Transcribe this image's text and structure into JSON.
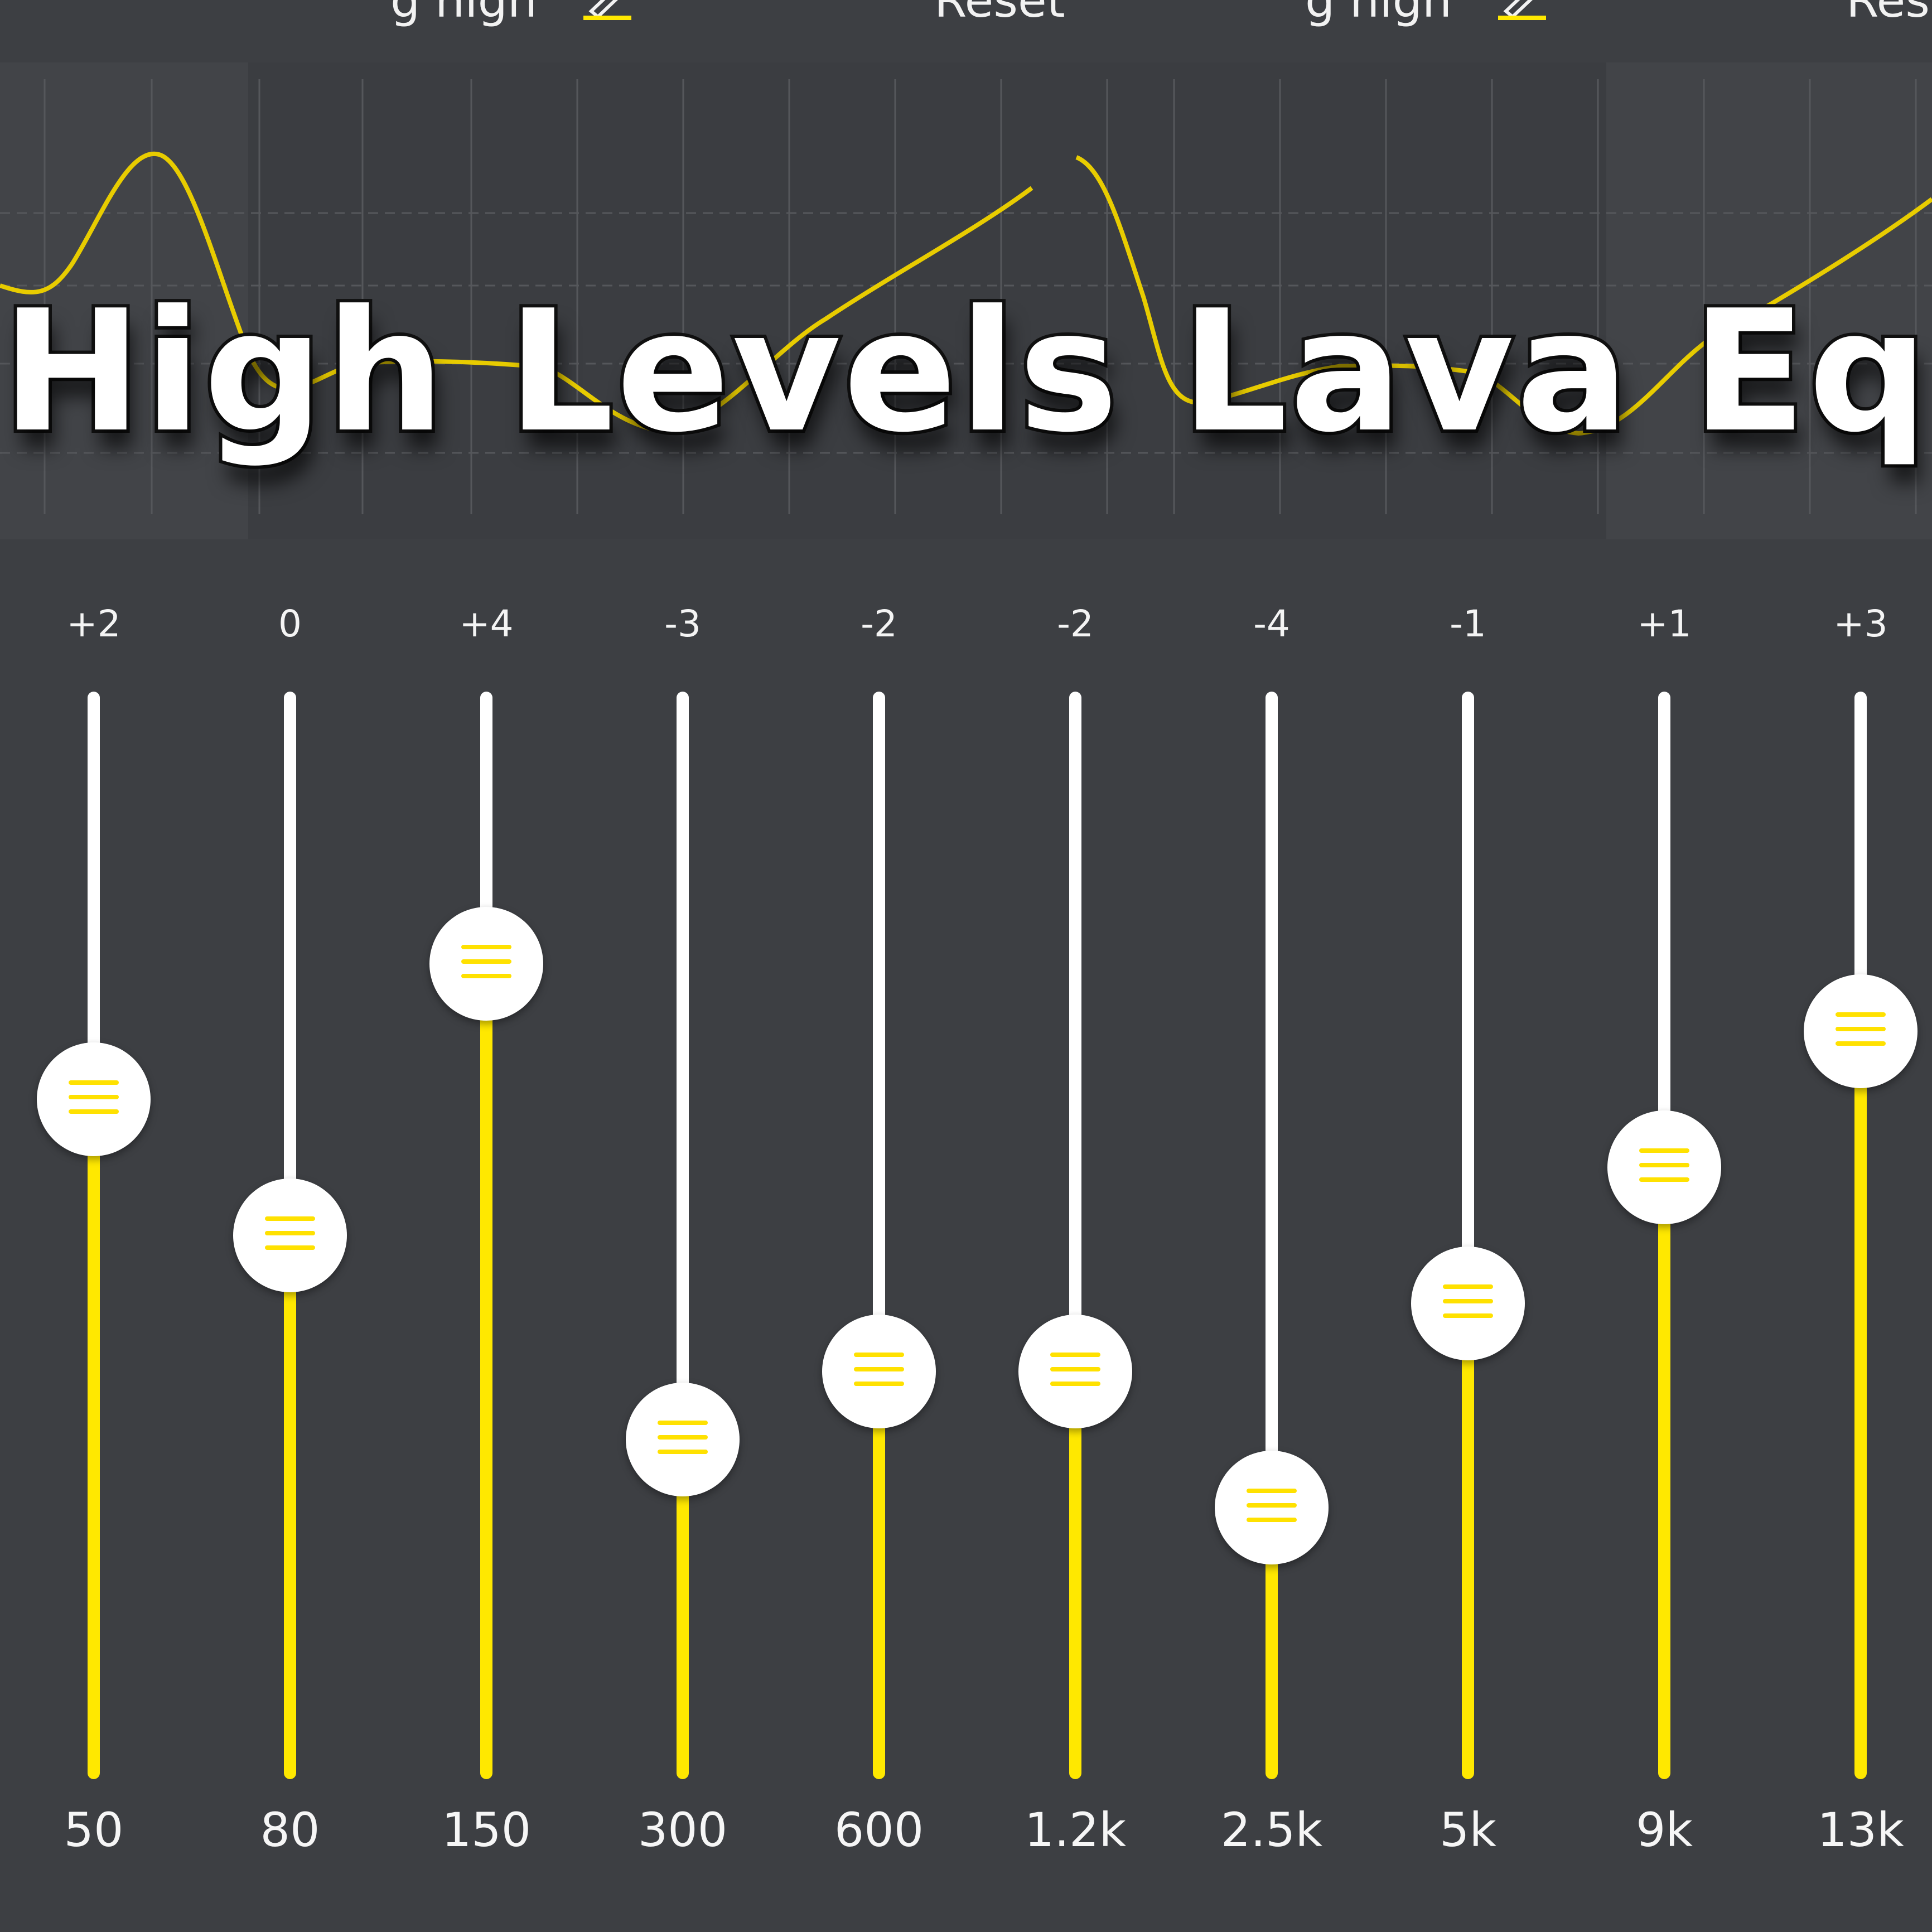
{
  "header": {
    "left_title": "g high",
    "left_reset": "Reset",
    "right_title": "g high",
    "right_reset": "Res",
    "pencil_icon": "pencil-edit-icon"
  },
  "overlay_title": "High Levels Lava Eq",
  "colors": {
    "background": "#3d3f43",
    "accent": "#ffe800",
    "track": "#ffffff",
    "grid": "#55575b"
  },
  "bands": [
    {
      "freq": "50",
      "gain_label": "+2",
      "gain": 2
    },
    {
      "freq": "80",
      "gain_label": "0",
      "gain": 0
    },
    {
      "freq": "150",
      "gain_label": "+4",
      "gain": 4
    },
    {
      "freq": "300",
      "gain_label": "-3",
      "gain": -3
    },
    {
      "freq": "600",
      "gain_label": "-2",
      "gain": -2
    },
    {
      "freq": "1.2k",
      "gain_label": "-2",
      "gain": -2
    },
    {
      "freq": "2.5k",
      "gain_label": "-4",
      "gain": -4
    },
    {
      "freq": "5k",
      "gain_label": "-1",
      "gain": -1
    },
    {
      "freq": "9k",
      "gain_label": "+1",
      "gain": 1
    },
    {
      "freq": "13k",
      "gain_label": "+3",
      "gain": 3
    }
  ],
  "slider_range": {
    "min": -8,
    "max": 8
  }
}
